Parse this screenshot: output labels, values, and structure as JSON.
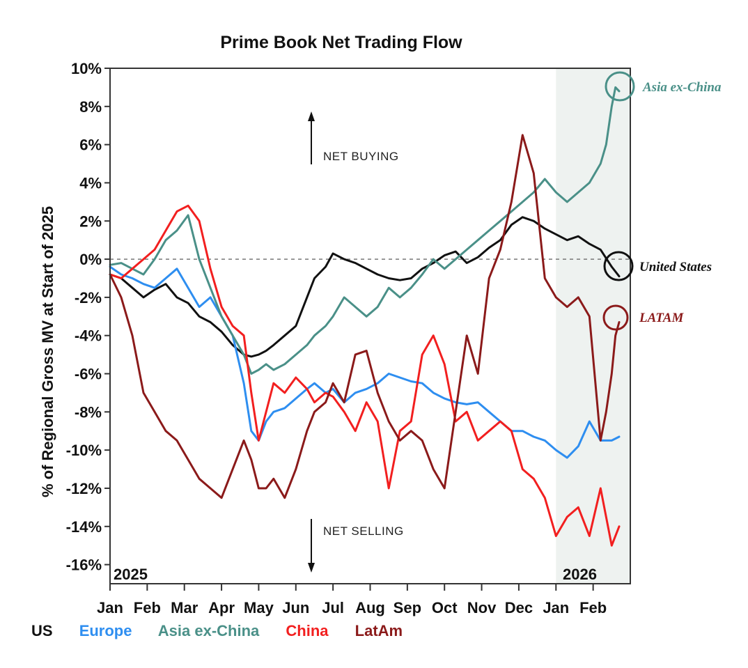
{
  "chart_data": {
    "type": "line",
    "title": "Prime Book Net Trading Flow",
    "ylabel": "% of Regional Gross MV at Start of 2025",
    "xlabel": "",
    "ylim": [
      -17,
      10
    ],
    "y_ticks": [
      10,
      8,
      6,
      4,
      2,
      0,
      -2,
      -4,
      -6,
      -8,
      -10,
      -12,
      -14,
      -16
    ],
    "y_tick_labels": [
      "10%",
      "8%",
      "6%",
      "4%",
      "2%",
      "0%",
      "-2%",
      "-4%",
      "-6%",
      "-8%",
      "-10%",
      "-12%",
      "-14%",
      "-16%"
    ],
    "x_domain": [
      0,
      14
    ],
    "x_ticks": [
      0,
      1,
      2,
      3,
      4,
      5,
      6,
      7,
      8,
      9,
      10,
      11,
      12,
      13
    ],
    "x_tick_labels": [
      "Jan",
      "Feb",
      "Mar",
      "Apr",
      "May",
      "Jun",
      "Jul",
      "Aug",
      "Sep",
      "Oct",
      "Nov",
      "Dec",
      "Jan",
      "Feb"
    ],
    "year_labels": [
      "2025",
      "2026"
    ],
    "shaded_region": [
      12,
      14
    ],
    "zero_reference_line": 0,
    "annotations": {
      "net_buying": "NET BUYING",
      "net_selling": "NET SELLING"
    },
    "series": [
      {
        "name": "US",
        "color": "#111111",
        "end_label": "United States",
        "circled": true,
        "x": [
          0,
          0.3,
          0.6,
          0.9,
          1.2,
          1.5,
          1.8,
          2.1,
          2.4,
          2.7,
          3.0,
          3.3,
          3.6,
          3.8,
          4.0,
          4.2,
          4.4,
          4.7,
          5.0,
          5.3,
          5.5,
          5.8,
          6.0,
          6.3,
          6.6,
          6.9,
          7.2,
          7.5,
          7.8,
          8.1,
          8.4,
          8.7,
          9.0,
          9.3,
          9.6,
          9.9,
          10.2,
          10.5,
          10.8,
          11.1,
          11.4,
          11.7,
          12.0,
          12.3,
          12.6,
          12.9,
          13.2,
          13.5,
          13.7
        ],
        "values": [
          -0.8,
          -1.0,
          -1.5,
          -2.0,
          -1.6,
          -1.3,
          -2.0,
          -2.3,
          -3.0,
          -3.3,
          -3.8,
          -4.5,
          -5.0,
          -5.1,
          -5.0,
          -4.8,
          -4.5,
          -4.0,
          -3.5,
          -2.0,
          -1.0,
          -0.4,
          0.3,
          0.0,
          -0.2,
          -0.5,
          -0.8,
          -1.0,
          -1.1,
          -1.0,
          -0.5,
          -0.2,
          0.2,
          0.4,
          -0.2,
          0.1,
          0.6,
          1.0,
          1.8,
          2.2,
          2.0,
          1.6,
          1.3,
          1.0,
          1.2,
          0.8,
          0.5,
          -0.4,
          -0.9
        ]
      },
      {
        "name": "Europe",
        "color": "#2e8ef0",
        "x": [
          0,
          0.3,
          0.6,
          0.9,
          1.2,
          1.5,
          1.8,
          2.1,
          2.4,
          2.7,
          3.0,
          3.3,
          3.6,
          3.8,
          4.0,
          4.2,
          4.4,
          4.7,
          5.0,
          5.3,
          5.5,
          5.8,
          6.0,
          6.3,
          6.6,
          6.9,
          7.2,
          7.5,
          7.8,
          8.1,
          8.4,
          8.7,
          9.0,
          9.3,
          9.6,
          9.9,
          10.2,
          10.5,
          10.8,
          11.1,
          11.4,
          11.7,
          12.0,
          12.3,
          12.6,
          12.9,
          13.2,
          13.5,
          13.7
        ],
        "values": [
          -0.4,
          -0.8,
          -1.0,
          -1.3,
          -1.5,
          -1.0,
          -0.5,
          -1.5,
          -2.5,
          -2.0,
          -3.0,
          -4.0,
          -6.5,
          -9.0,
          -9.5,
          -8.5,
          -8.0,
          -7.8,
          -7.3,
          -6.8,
          -6.5,
          -7.0,
          -6.8,
          -7.5,
          -7.0,
          -6.8,
          -6.5,
          -6.0,
          -6.2,
          -6.4,
          -6.5,
          -7.0,
          -7.3,
          -7.5,
          -7.6,
          -7.5,
          -8.0,
          -8.5,
          -9.0,
          -9.0,
          -9.3,
          -9.5,
          -10.0,
          -10.4,
          -9.8,
          -8.5,
          -9.5,
          -9.5,
          -9.3
        ]
      },
      {
        "name": "Asia ex-China",
        "color": "#4a9088",
        "end_label": "Asia ex-China",
        "circled": true,
        "x": [
          0,
          0.3,
          0.6,
          0.9,
          1.2,
          1.5,
          1.8,
          2.1,
          2.4,
          2.7,
          3.0,
          3.3,
          3.6,
          3.8,
          4.0,
          4.2,
          4.4,
          4.7,
          5.0,
          5.3,
          5.5,
          5.8,
          6.0,
          6.3,
          6.6,
          6.9,
          7.2,
          7.5,
          7.8,
          8.1,
          8.4,
          8.7,
          9.0,
          9.3,
          9.6,
          9.9,
          10.2,
          10.5,
          10.8,
          11.1,
          11.4,
          11.7,
          12.0,
          12.3,
          12.6,
          12.9,
          13.2,
          13.35,
          13.5,
          13.6,
          13.7
        ],
        "values": [
          -0.3,
          -0.2,
          -0.5,
          -0.8,
          0.0,
          1.0,
          1.5,
          2.3,
          0.0,
          -1.5,
          -3.0,
          -4.0,
          -5.0,
          -6.0,
          -5.8,
          -5.5,
          -5.8,
          -5.5,
          -5.0,
          -4.5,
          -4.0,
          -3.5,
          -3.0,
          -2.0,
          -2.5,
          -3.0,
          -2.5,
          -1.5,
          -2.0,
          -1.5,
          -0.8,
          0.0,
          -0.5,
          0.0,
          0.5,
          1.0,
          1.5,
          2.0,
          2.5,
          3.0,
          3.5,
          4.2,
          3.5,
          3.0,
          3.5,
          4.0,
          5.0,
          6.0,
          8.0,
          9.0,
          8.8
        ]
      },
      {
        "name": "China",
        "color": "#f21f1f",
        "x": [
          0,
          0.3,
          0.6,
          0.9,
          1.2,
          1.5,
          1.8,
          2.1,
          2.4,
          2.7,
          3.0,
          3.3,
          3.6,
          3.8,
          4.0,
          4.2,
          4.4,
          4.7,
          5.0,
          5.3,
          5.5,
          5.8,
          6.0,
          6.3,
          6.6,
          6.9,
          7.2,
          7.5,
          7.8,
          8.1,
          8.4,
          8.7,
          9.0,
          9.3,
          9.6,
          9.9,
          10.2,
          10.5,
          10.8,
          11.1,
          11.4,
          11.7,
          12.0,
          12.3,
          12.6,
          12.9,
          13.2,
          13.5,
          13.7
        ],
        "values": [
          -0.8,
          -1.0,
          -0.5,
          0.0,
          0.5,
          1.5,
          2.5,
          2.8,
          2.0,
          -0.5,
          -2.5,
          -3.5,
          -4.0,
          -7.0,
          -9.5,
          -8.0,
          -6.5,
          -7.0,
          -6.2,
          -6.8,
          -7.5,
          -7.0,
          -7.2,
          -8.0,
          -9.0,
          -7.5,
          -8.5,
          -12.0,
          -9.0,
          -8.5,
          -5.0,
          -4.0,
          -5.5,
          -8.5,
          -8.0,
          -9.5,
          -9.0,
          -8.5,
          -9.0,
          -11.0,
          -11.5,
          -12.5,
          -14.5,
          -13.5,
          -13.0,
          -14.5,
          -12.0,
          -15.0,
          -14.0
        ]
      },
      {
        "name": "LatAm",
        "color": "#8b1a1a",
        "end_label": "LATAM",
        "circled": true,
        "x": [
          0,
          0.3,
          0.6,
          0.9,
          1.2,
          1.5,
          1.8,
          2.1,
          2.4,
          2.7,
          3.0,
          3.3,
          3.6,
          3.8,
          4.0,
          4.2,
          4.4,
          4.7,
          5.0,
          5.3,
          5.5,
          5.8,
          6.0,
          6.3,
          6.6,
          6.9,
          7.2,
          7.5,
          7.8,
          8.1,
          8.4,
          8.7,
          9.0,
          9.3,
          9.6,
          9.9,
          10.2,
          10.5,
          10.8,
          11.1,
          11.4,
          11.7,
          12.0,
          12.3,
          12.6,
          12.9,
          13.2,
          13.35,
          13.5,
          13.6,
          13.7
        ],
        "values": [
          -0.8,
          -2.0,
          -4.0,
          -7.0,
          -8.0,
          -9.0,
          -9.5,
          -10.5,
          -11.5,
          -12.0,
          -12.5,
          -11.0,
          -9.5,
          -10.5,
          -12.0,
          -12.0,
          -11.5,
          -12.5,
          -11.0,
          -9.0,
          -8.0,
          -7.5,
          -6.5,
          -7.5,
          -5.0,
          -4.8,
          -7.0,
          -8.5,
          -9.5,
          -9.0,
          -9.5,
          -11.0,
          -12.0,
          -8.0,
          -4.0,
          -6.0,
          -1.0,
          0.5,
          3.0,
          6.5,
          4.5,
          -1.0,
          -2.0,
          -2.5,
          -2.0,
          -3.0,
          -9.5,
          -8.0,
          -6.0,
          -4.0,
          -3.3
        ]
      }
    ]
  },
  "legend": [
    {
      "label": "US",
      "color": "#111111"
    },
    {
      "label": "Europe",
      "color": "#2e8ef0"
    },
    {
      "label": "Asia ex-China",
      "color": "#4a9088"
    },
    {
      "label": "China",
      "color": "#f21f1f"
    },
    {
      "label": "LatAm",
      "color": "#8b1a1a"
    }
  ]
}
